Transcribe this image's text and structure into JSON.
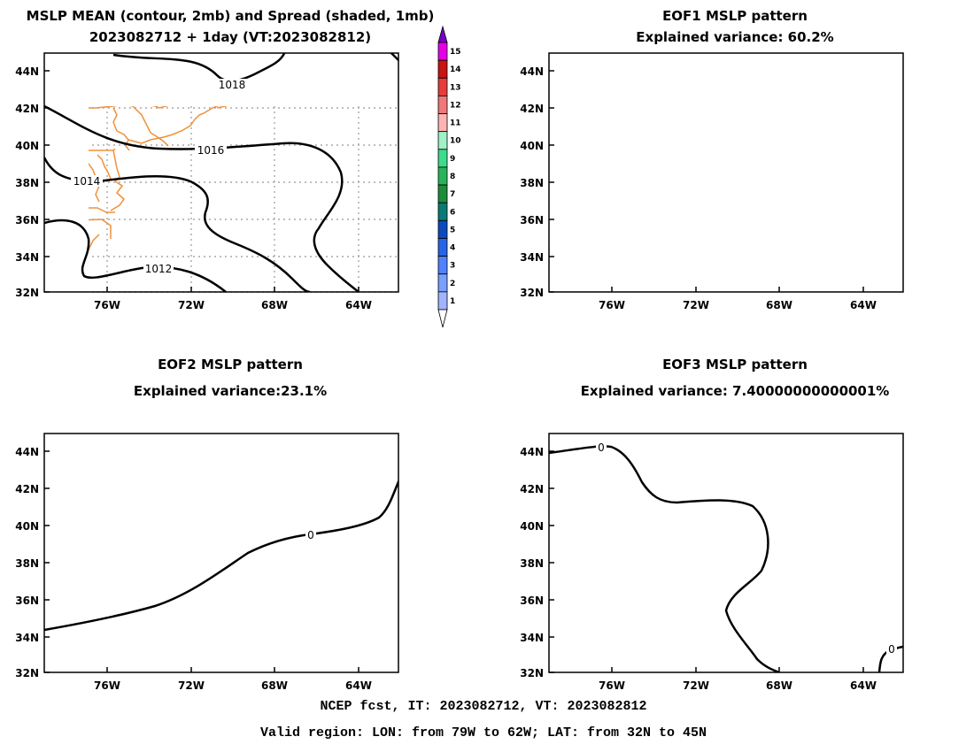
{
  "panels": [
    {
      "id": "mean",
      "title1": "MSLP MEAN (contour, 2mb) and Spread (shaded, 1mb)",
      "title2": "2023082712 + 1day (VT:2023082812)",
      "contour_labels": [
        "1018",
        "1016",
        "1014",
        "1012"
      ]
    },
    {
      "id": "eof1",
      "title1": "EOF1 MSLP pattern",
      "title2": "Explained variance: 60.2%",
      "contour_labels": []
    },
    {
      "id": "eof2",
      "title1": "EOF2 MSLP pattern",
      "title2": "Explained variance:23.1%",
      "contour_labels": [
        "0"
      ]
    },
    {
      "id": "eof3",
      "title1": "EOF3 MSLP pattern",
      "title2": "Explained variance: 7.40000000000001%",
      "contour_labels": [
        "0",
        "0"
      ]
    }
  ],
  "axes": {
    "lon_labels": [
      "76W",
      "72W",
      "68W",
      "64W"
    ],
    "lat_labels": [
      "44N",
      "42N",
      "40N",
      "38N",
      "36N",
      "34N",
      "32N"
    ]
  },
  "colorbar": {
    "labels": [
      "15",
      "14",
      "13",
      "12",
      "11",
      "10",
      "9",
      "8",
      "7",
      "6",
      "5",
      "4",
      "3",
      "2",
      "1"
    ],
    "colors": [
      "#c8c8ff",
      "#a0b4ff",
      "#78a0ff",
      "#5082ff",
      "#2864e6",
      "#0a4bbe",
      "#087a78",
      "#1e8c3c",
      "#28b45a",
      "#3cdc8c",
      "#a0f0c8",
      "#ffb4b4",
      "#f07878",
      "#e63c3c",
      "#c81414",
      "#e600e6",
      "#7800c8"
    ]
  },
  "footer": {
    "line1": "NCEP fcst, IT: 2023082712, VT: 2023082812",
    "line2": "Valid region: LON: from 79W to 62W; LAT: from 32N to 45N"
  },
  "style": {
    "coast_color": "#f0913a",
    "contour_color": "#000000"
  }
}
